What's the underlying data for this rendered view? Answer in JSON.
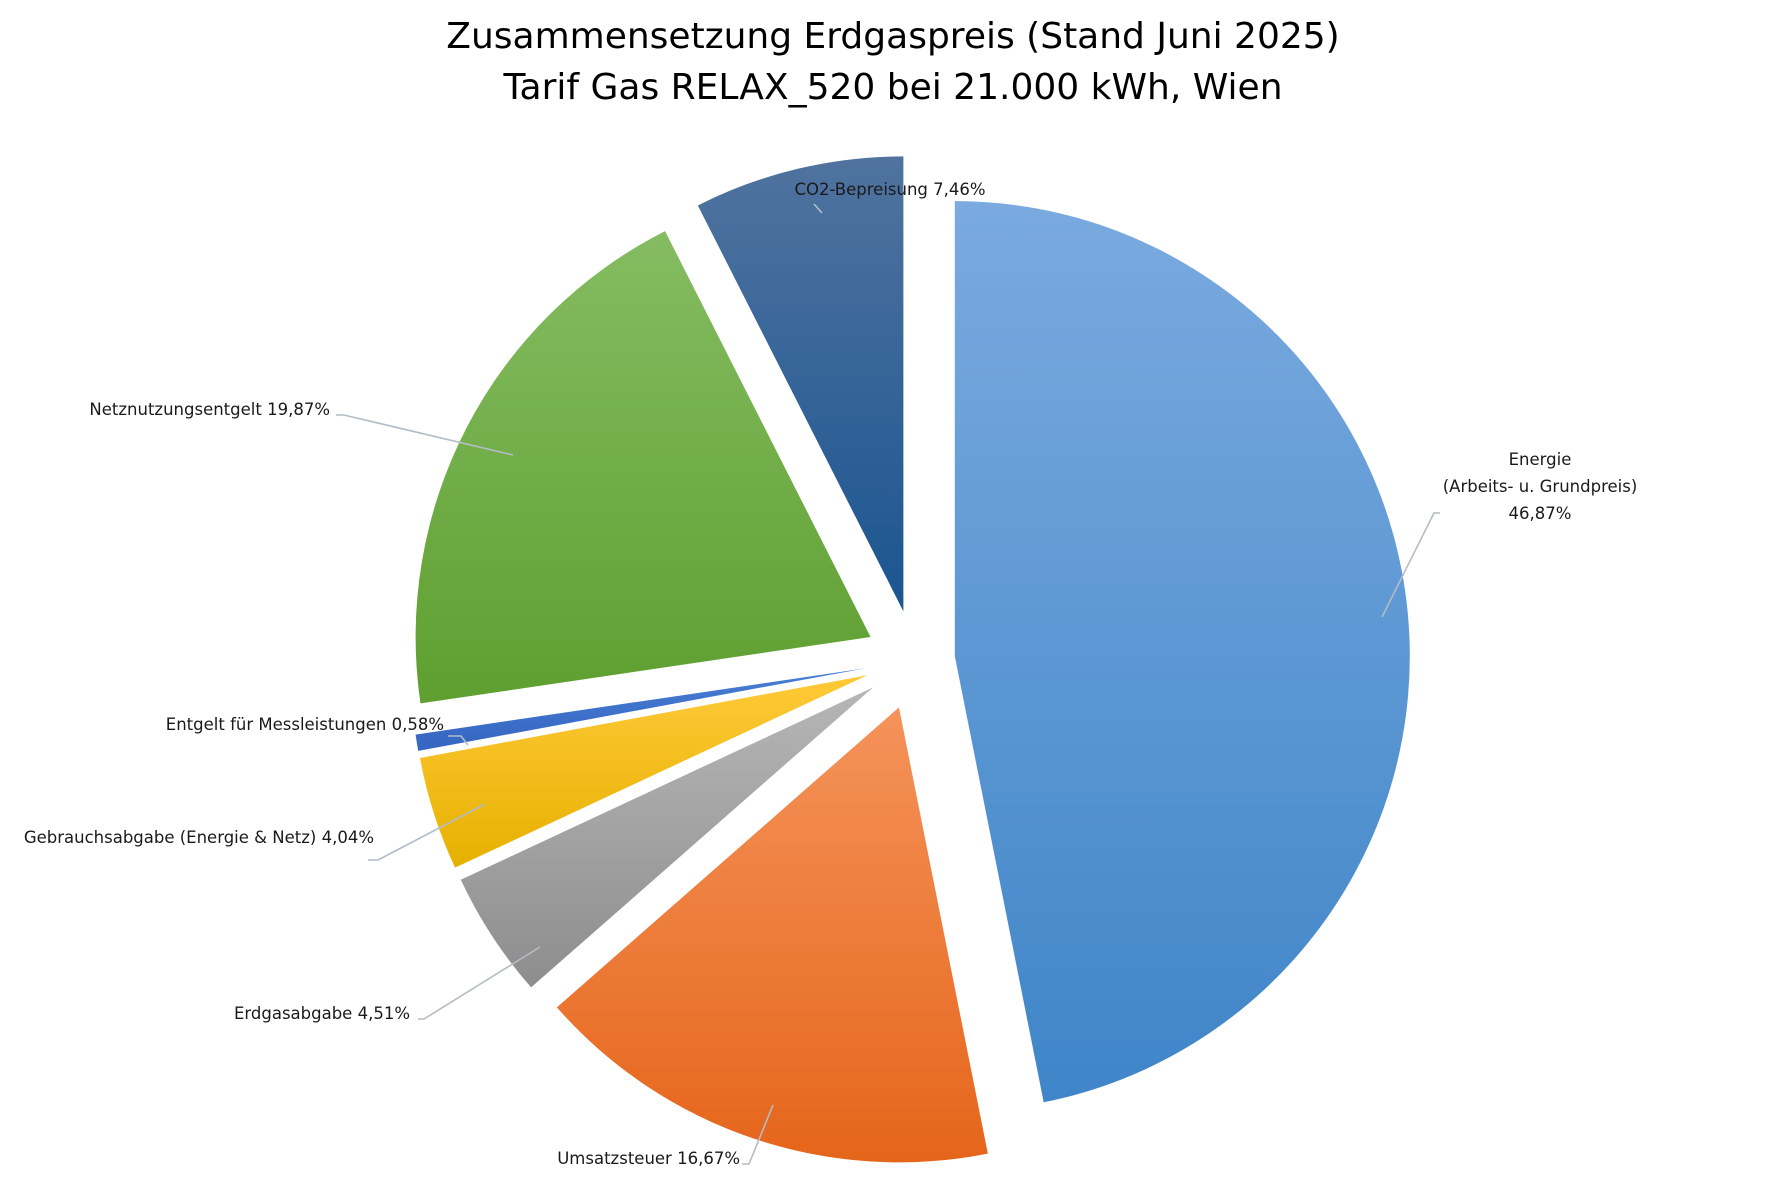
{
  "chart_data": {
    "type": "pie",
    "title": "Zusammensetzung Erdgaspreis (Stand Juni 2025)",
    "subtitle": "Tarif Gas RELAX_520 bei 21.000 kWh, Wien",
    "unit": "%",
    "slices": [
      {
        "name": "Energie (Arbeits- u. Grundpreis)",
        "value": 46.87,
        "label_lines": [
          "Energie",
          "(Arbeits- u. Grundpreis)",
          "46,87%"
        ],
        "color_top": "#7aaadf",
        "color_bottom": "#3f85c8"
      },
      {
        "name": "Umsatzsteuer",
        "value": 16.67,
        "label_lines": [
          "Umsatzsteuer 16,67%"
        ],
        "color_top": "#f5935a",
        "color_bottom": "#e5651a"
      },
      {
        "name": "Erdgasabgabe",
        "value": 4.51,
        "label_lines": [
          "Erdgasabgabe 4,51%"
        ],
        "color_top": "#b6b6b6",
        "color_bottom": "#8d8d8d"
      },
      {
        "name": "Gebrauchsabgabe (Energie & Netz)",
        "value": 4.04,
        "label_lines": [
          "Gebrauchsabgabe (Energie & Netz) 4,04%"
        ],
        "color_top": "#ffca38",
        "color_bottom": "#e6b000"
      },
      {
        "name": "Entgelt für Messleistungen",
        "value": 0.58,
        "label_lines": [
          "Entgelt für Messleistungen  0,58%"
        ],
        "color_top": "#4a7fd6",
        "color_bottom": "#3465c0"
      },
      {
        "name": "Netznutzungsentgelt",
        "value": 19.87,
        "label_lines": [
          "Netznutzungsentgelt 19,87%"
        ],
        "color_top": "#85bc62",
        "color_bottom": "#5e9f30"
      },
      {
        "name": "CO2-Bepreisung",
        "value": 7.46,
        "label_lines": [
          "CO2-Bepreisung  7,46%"
        ],
        "color_top": "#50739f",
        "color_bottom": "#1b5590"
      }
    ]
  }
}
